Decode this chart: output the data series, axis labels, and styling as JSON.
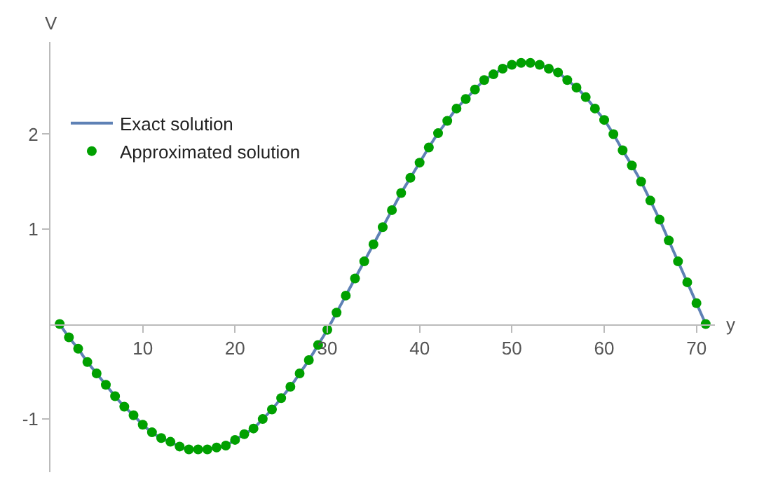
{
  "chart_data": {
    "type": "line",
    "xlabel": "y",
    "ylabel": "V",
    "x": [
      1,
      2,
      3,
      4,
      5,
      6,
      7,
      8,
      9,
      10,
      11,
      12,
      13,
      14,
      15,
      16,
      17,
      18,
      19,
      20,
      21,
      22,
      23,
      24,
      25,
      26,
      27,
      28,
      29,
      30,
      31,
      32,
      33,
      34,
      35,
      36,
      37,
      38,
      39,
      40,
      41,
      42,
      43,
      44,
      45,
      46,
      47,
      48,
      49,
      50,
      51,
      52,
      53,
      54,
      55,
      56,
      57,
      58,
      59,
      60,
      61,
      62,
      63,
      64,
      65,
      66,
      67,
      68,
      69,
      70,
      71
    ],
    "series": [
      {
        "name": "Exact solution",
        "color": "#5e81b5",
        "marker": "none",
        "line_style": "solid",
        "values": [
          0,
          -0.14,
          -0.26,
          -0.4,
          -0.52,
          -0.64,
          -0.76,
          -0.87,
          -0.96,
          -1.06,
          -1.14,
          -1.2,
          -1.24,
          -1.29,
          -1.32,
          -1.32,
          -1.32,
          -1.3,
          -1.28,
          -1.22,
          -1.16,
          -1.1,
          -1,
          -0.9,
          -0.78,
          -0.66,
          -0.52,
          -0.38,
          -0.22,
          -0.06,
          0.12,
          0.3,
          0.48,
          0.66,
          0.84,
          1.02,
          1.2,
          1.38,
          1.54,
          1.7,
          1.86,
          2.01,
          2.14,
          2.27,
          2.37,
          2.47,
          2.57,
          2.63,
          2.69,
          2.73,
          2.75,
          2.75,
          2.73,
          2.69,
          2.65,
          2.57,
          2.49,
          2.39,
          2.27,
          2.15,
          2,
          1.83,
          1.67,
          1.5,
          1.3,
          1.1,
          0.88,
          0.66,
          0.44,
          0.22,
          0
        ]
      },
      {
        "name": "Approximated solution",
        "type": "scatter",
        "color": "#00a000",
        "marker": "circle",
        "values": [
          0,
          -0.14,
          -0.26,
          -0.4,
          -0.52,
          -0.64,
          -0.76,
          -0.87,
          -0.96,
          -1.06,
          -1.14,
          -1.2,
          -1.24,
          -1.29,
          -1.32,
          -1.32,
          -1.32,
          -1.3,
          -1.28,
          -1.22,
          -1.16,
          -1.1,
          -1,
          -0.9,
          -0.78,
          -0.66,
          -0.52,
          -0.38,
          -0.22,
          -0.06,
          0.12,
          0.3,
          0.48,
          0.66,
          0.84,
          1.02,
          1.2,
          1.38,
          1.54,
          1.7,
          1.86,
          2.01,
          2.14,
          2.27,
          2.37,
          2.47,
          2.57,
          2.63,
          2.69,
          2.73,
          2.75,
          2.75,
          2.73,
          2.69,
          2.65,
          2.57,
          2.49,
          2.39,
          2.27,
          2.15,
          2,
          1.83,
          1.67,
          1.5,
          1.3,
          1.1,
          0.88,
          0.66,
          0.44,
          0.22,
          0
        ]
      }
    ],
    "xlim": [
      0,
      72
    ],
    "ylim": [
      -1.56,
      2.97
    ],
    "xticks": [
      10,
      20,
      30,
      40,
      50,
      60,
      70
    ],
    "yticks": [
      -1,
      1,
      2
    ],
    "grid": false,
    "legend": "top left"
  }
}
